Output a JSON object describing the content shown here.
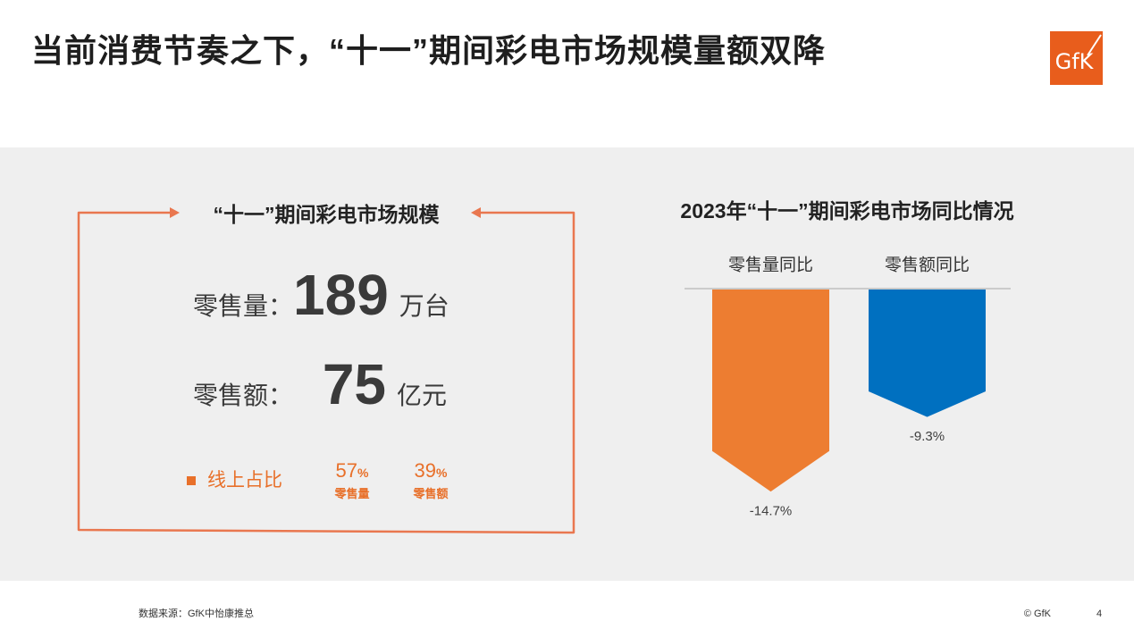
{
  "slide": {
    "title": "当前消费节奏之下，“十一”期间彩电市场规模量额双降",
    "logo_text": "GfK",
    "source": "数据来源：GfK中怡康推总",
    "copyright": "© GfK",
    "page_number": "4"
  },
  "market_size": {
    "title": "“十一”期间彩电市场规模",
    "volume": {
      "label": "零售量：",
      "value": 189,
      "unit": "万台"
    },
    "revenue": {
      "label": "零售额：",
      "value": 75,
      "unit": "亿元"
    },
    "online_share": {
      "label": "线上占比",
      "items": [
        {
          "value": 57,
          "unit": "%",
          "label": "零售量"
        },
        {
          "value": 39,
          "unit": "%",
          "label": "零售额"
        }
      ]
    }
  },
  "chart_data": {
    "type": "bar",
    "title": "2023年“十一”期间彩电市场同比情况",
    "categories": [
      "零售量同比",
      "零售额同比"
    ],
    "values": [
      -14.7,
      -9.3
    ],
    "data_labels": [
      "-14.7%",
      "-9.3%"
    ],
    "colors": [
      "#ED7D31",
      "#0070C0"
    ],
    "xlabel": "",
    "ylabel": "",
    "grid": false
  },
  "theme": {
    "accent_orange": "#E8702A",
    "frame_orange": "#E9774F",
    "logo_orange": "#E85D1C",
    "band_gray": "#EFEFEF",
    "text_dark": "#3A3A3A"
  }
}
